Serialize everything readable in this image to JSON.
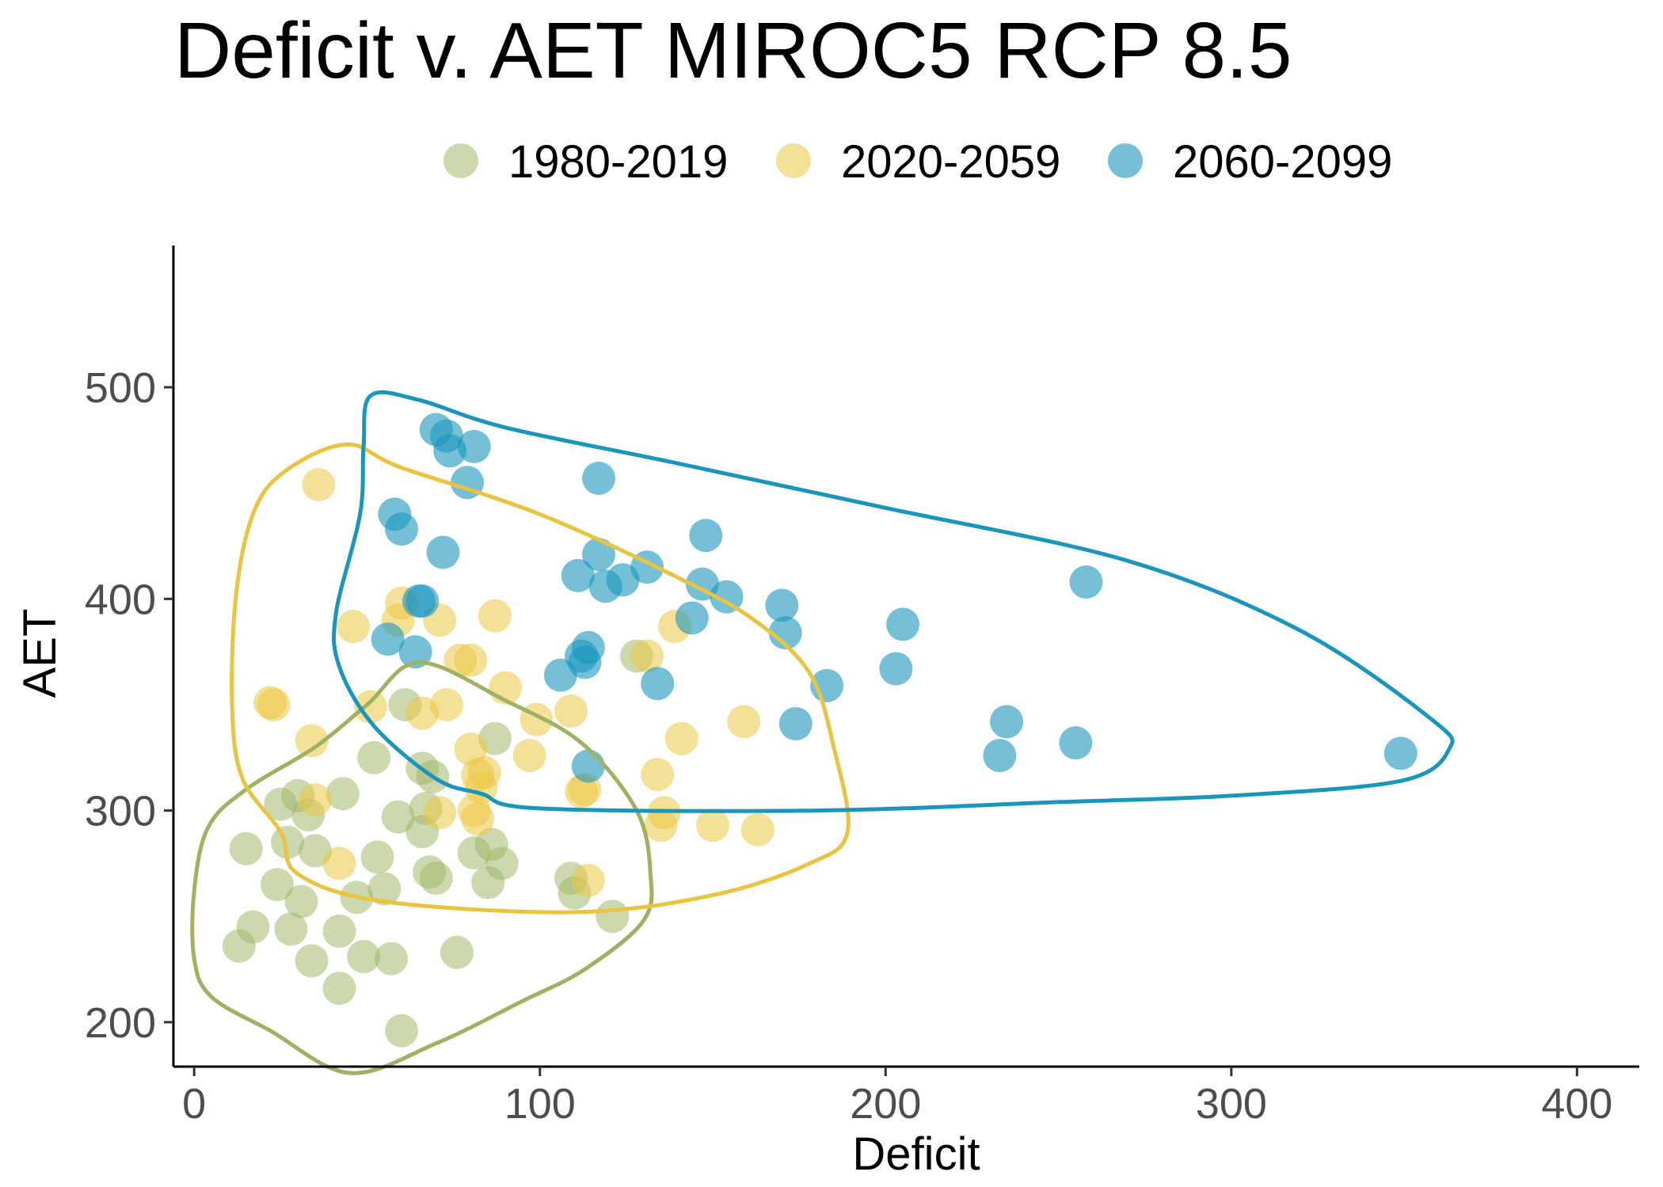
{
  "chart_data": {
    "type": "scatter",
    "title": "Deficit v. AET MIROC5 RCP 8.5",
    "xlabel": "Deficit",
    "ylabel": "AET",
    "xlim": [
      -6,
      418
    ],
    "ylim": [
      179,
      567
    ],
    "xticks": [
      0,
      100,
      200,
      300,
      400
    ],
    "yticks": [
      200,
      300,
      400,
      500
    ],
    "grid": false,
    "legend_position": "top",
    "series": [
      {
        "name": "1980-2019",
        "color": "#a3b86c",
        "opacity": 0.55,
        "points": [
          [
            13,
            236
          ],
          [
            15,
            282
          ],
          [
            17,
            245
          ],
          [
            24,
            265
          ],
          [
            25,
            303
          ],
          [
            27,
            285
          ],
          [
            28,
            244
          ],
          [
            30,
            307
          ],
          [
            31,
            257
          ],
          [
            33,
            298
          ],
          [
            34,
            229
          ],
          [
            35,
            281
          ],
          [
            42,
            243
          ],
          [
            42,
            216
          ],
          [
            43,
            308
          ],
          [
            47,
            259
          ],
          [
            49,
            231
          ],
          [
            52,
            325
          ],
          [
            53,
            278
          ],
          [
            55,
            263
          ],
          [
            57,
            230
          ],
          [
            59,
            297
          ],
          [
            60,
            196
          ],
          [
            61,
            350
          ],
          [
            66,
            290
          ],
          [
            66,
            320
          ],
          [
            67,
            301
          ],
          [
            68,
            271
          ],
          [
            69,
            316
          ],
          [
            70,
            268
          ],
          [
            76,
            233
          ],
          [
            81,
            280
          ],
          [
            85,
            266
          ],
          [
            86,
            284
          ],
          [
            87,
            334
          ],
          [
            89,
            275
          ],
          [
            109,
            268
          ],
          [
            110,
            261
          ],
          [
            121,
            250
          ],
          [
            128,
            373
          ]
        ]
      },
      {
        "name": "2020-2059",
        "color": "#ebc944",
        "opacity": 0.55,
        "points": [
          [
            22,
            351
          ],
          [
            23,
            350
          ],
          [
            34,
            333
          ],
          [
            35,
            305
          ],
          [
            36,
            454
          ],
          [
            42,
            275
          ],
          [
            46,
            387
          ],
          [
            51,
            349
          ],
          [
            59,
            390
          ],
          [
            60,
            398
          ],
          [
            66,
            346
          ],
          [
            71,
            390
          ],
          [
            71,
            299
          ],
          [
            73,
            350
          ],
          [
            77,
            371
          ],
          [
            80,
            371
          ],
          [
            80,
            329
          ],
          [
            81,
            300
          ],
          [
            82,
            296
          ],
          [
            82,
            317
          ],
          [
            83,
            311
          ],
          [
            84,
            318
          ],
          [
            87,
            392
          ],
          [
            90,
            358
          ],
          [
            97,
            326
          ],
          [
            99,
            343
          ],
          [
            109,
            347
          ],
          [
            112,
            309
          ],
          [
            113,
            310
          ],
          [
            114,
            267
          ],
          [
            131,
            373
          ],
          [
            134,
            317
          ],
          [
            135,
            293
          ],
          [
            136,
            299
          ],
          [
            141,
            334
          ],
          [
            139,
            387
          ],
          [
            150,
            293
          ],
          [
            159,
            342
          ],
          [
            163,
            291
          ]
        ]
      },
      {
        "name": "2060-2099",
        "color": "#1b96bd",
        "opacity": 0.6,
        "points": [
          [
            56,
            381
          ],
          [
            58,
            440
          ],
          [
            60,
            433
          ],
          [
            64,
            375
          ],
          [
            65,
            399
          ],
          [
            66,
            399
          ],
          [
            70,
            480
          ],
          [
            72,
            422
          ],
          [
            73,
            477
          ],
          [
            74,
            470
          ],
          [
            79,
            455
          ],
          [
            81,
            472
          ],
          [
            106,
            364
          ],
          [
            111,
            411
          ],
          [
            112,
            373
          ],
          [
            113,
            370
          ],
          [
            114,
            377
          ],
          [
            114,
            321
          ],
          [
            117,
            457
          ],
          [
            117,
            421
          ],
          [
            119,
            406
          ],
          [
            124,
            409
          ],
          [
            131,
            415
          ],
          [
            134,
            360
          ],
          [
            144,
            391
          ],
          [
            147,
            407
          ],
          [
            148,
            430
          ],
          [
            154,
            401
          ],
          [
            170,
            397
          ],
          [
            171,
            384
          ],
          [
            174,
            341
          ],
          [
            183,
            359
          ],
          [
            203,
            367
          ],
          [
            205,
            388
          ],
          [
            233,
            326
          ],
          [
            235,
            342
          ],
          [
            255,
            332
          ],
          [
            258,
            408
          ],
          [
            349,
            327
          ]
        ]
      }
    ],
    "hulls": [
      {
        "name": "1980-2019",
        "color": "#9fb263",
        "path": [
          [
            65,
            370
          ],
          [
            90,
            352
          ],
          [
            112,
            332
          ],
          [
            128,
            300
          ],
          [
            132,
            270
          ],
          [
            130,
            248
          ],
          [
            113,
            225
          ],
          [
            95,
            210
          ],
          [
            70,
            190
          ],
          [
            45,
            176
          ],
          [
            22,
            196
          ],
          [
            5,
            212
          ],
          [
            0,
            230
          ],
          [
            0,
            262
          ],
          [
            4,
            292
          ],
          [
            15,
            310
          ],
          [
            35,
            330
          ],
          [
            50,
            350
          ]
        ]
      },
      {
        "name": "2020-2059",
        "color": "#e8c440",
        "path": [
          [
            44,
            473
          ],
          [
            60,
            462
          ],
          [
            100,
            440
          ],
          [
            140,
            410
          ],
          [
            162,
            390
          ],
          [
            178,
            365
          ],
          [
            185,
            330
          ],
          [
            189,
            290
          ],
          [
            178,
            275
          ],
          [
            150,
            260
          ],
          [
            110,
            252
          ],
          [
            55,
            257
          ],
          [
            30,
            270
          ],
          [
            25,
            290
          ],
          [
            14,
            315
          ],
          [
            11,
            348
          ],
          [
            12,
            400
          ],
          [
            17,
            440
          ],
          [
            26,
            460
          ]
        ]
      },
      {
        "name": "2060-2099",
        "color": "#1a95bb",
        "path": [
          [
            51,
            496
          ],
          [
            65,
            494
          ],
          [
            90,
            481
          ],
          [
            140,
            464
          ],
          [
            200,
            443
          ],
          [
            270,
            418
          ],
          [
            320,
            385
          ],
          [
            358,
            343
          ],
          [
            363,
            329
          ],
          [
            349,
            314
          ],
          [
            300,
            307
          ],
          [
            250,
            304
          ],
          [
            180,
            300
          ],
          [
            100,
            301
          ],
          [
            83,
            308
          ],
          [
            70,
            315
          ],
          [
            52,
            340
          ],
          [
            42,
            368
          ],
          [
            41,
            393
          ],
          [
            48,
            440
          ],
          [
            49,
            472
          ]
        ]
      }
    ]
  }
}
